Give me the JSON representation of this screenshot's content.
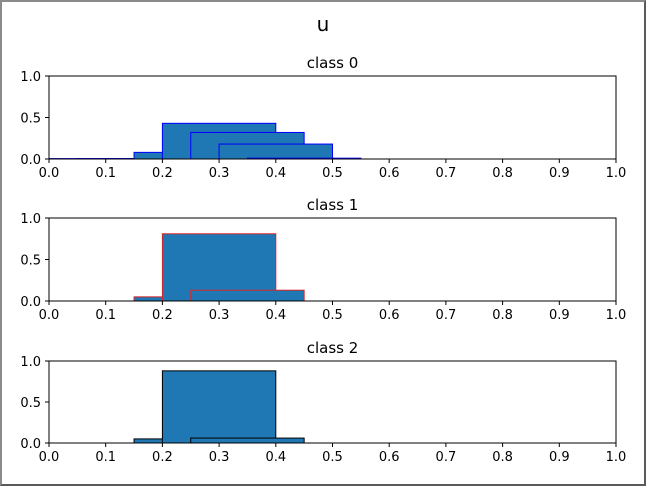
{
  "figure": {
    "title": "u"
  },
  "colors": {
    "fill": "#1f77b4"
  },
  "chart_data": [
    {
      "type": "histogram",
      "title": "class 0",
      "edge_color": "#0000ff",
      "xlim": [
        0.0,
        1.0
      ],
      "ylim": [
        0.0,
        1.0
      ],
      "xticks": [
        "0.0",
        "0.1",
        "0.2",
        "0.3",
        "0.4",
        "0.5",
        "0.6",
        "0.7",
        "0.8",
        "0.9",
        "1.0"
      ],
      "yticks": [
        "0.0",
        "0.5",
        "1.0"
      ],
      "bars": [
        {
          "x0": 0.0,
          "x1": 0.2,
          "height": 0.005
        },
        {
          "x0": 0.05,
          "x1": 0.25,
          "height": 0.005
        },
        {
          "x0": 0.1,
          "x1": 0.3,
          "height": 0.005
        },
        {
          "x0": 0.15,
          "x1": 0.35,
          "height": 0.08
        },
        {
          "x0": 0.2,
          "x1": 0.4,
          "height": 0.43
        },
        {
          "x0": 0.25,
          "x1": 0.45,
          "height": 0.32
        },
        {
          "x0": 0.3,
          "x1": 0.5,
          "height": 0.18
        },
        {
          "x0": 0.35,
          "x1": 0.55,
          "height": 0.01
        },
        {
          "x0": 0.4,
          "x1": 0.6,
          "height": 0.0
        },
        {
          "x0": 0.45,
          "x1": 0.65,
          "height": 0.0
        },
        {
          "x0": 0.5,
          "x1": 0.7,
          "height": 0.0
        },
        {
          "x0": 0.55,
          "x1": 0.75,
          "height": 0.0
        },
        {
          "x0": 0.6,
          "x1": 0.8,
          "height": 0.0
        },
        {
          "x0": 0.65,
          "x1": 0.85,
          "height": 0.0
        },
        {
          "x0": 0.7,
          "x1": 0.9,
          "height": 0.0
        },
        {
          "x0": 0.75,
          "x1": 0.95,
          "height": 0.0
        },
        {
          "x0": 0.8,
          "x1": 1.0,
          "height": 0.0
        }
      ]
    },
    {
      "type": "histogram",
      "title": "class 1",
      "edge_color": "#d62728",
      "xlim": [
        0.0,
        1.0
      ],
      "ylim": [
        0.0,
        1.0
      ],
      "xticks": [
        "0.0",
        "0.1",
        "0.2",
        "0.3",
        "0.4",
        "0.5",
        "0.6",
        "0.7",
        "0.8",
        "0.9",
        "1.0"
      ],
      "yticks": [
        "0.0",
        "0.5",
        "1.0"
      ],
      "bars": [
        {
          "x0": 0.0,
          "x1": 0.2,
          "height": 0.0
        },
        {
          "x0": 0.05,
          "x1": 0.25,
          "height": 0.0
        },
        {
          "x0": 0.1,
          "x1": 0.3,
          "height": 0.0
        },
        {
          "x0": 0.15,
          "x1": 0.35,
          "height": 0.05
        },
        {
          "x0": 0.2,
          "x1": 0.4,
          "height": 0.81
        },
        {
          "x0": 0.25,
          "x1": 0.45,
          "height": 0.13
        },
        {
          "x0": 0.3,
          "x1": 0.5,
          "height": 0.0
        },
        {
          "x0": 0.35,
          "x1": 0.55,
          "height": 0.0
        },
        {
          "x0": 0.4,
          "x1": 0.6,
          "height": 0.0
        },
        {
          "x0": 0.45,
          "x1": 0.65,
          "height": 0.0
        },
        {
          "x0": 0.5,
          "x1": 0.7,
          "height": 0.0
        },
        {
          "x0": 0.55,
          "x1": 0.75,
          "height": 0.0
        },
        {
          "x0": 0.6,
          "x1": 0.8,
          "height": 0.0
        },
        {
          "x0": 0.65,
          "x1": 0.85,
          "height": 0.0
        },
        {
          "x0": 0.7,
          "x1": 0.9,
          "height": 0.0
        },
        {
          "x0": 0.75,
          "x1": 0.95,
          "height": 0.0
        },
        {
          "x0": 0.8,
          "x1": 1.0,
          "height": 0.0
        }
      ]
    },
    {
      "type": "histogram",
      "title": "class 2",
      "edge_color": "#000000",
      "xlim": [
        0.0,
        1.0
      ],
      "ylim": [
        0.0,
        1.0
      ],
      "xticks": [
        "0.0",
        "0.1",
        "0.2",
        "0.3",
        "0.4",
        "0.5",
        "0.6",
        "0.7",
        "0.8",
        "0.9",
        "1.0"
      ],
      "yticks": [
        "0.0",
        "0.5",
        "1.0"
      ],
      "bars": [
        {
          "x0": 0.0,
          "x1": 0.2,
          "height": 0.0
        },
        {
          "x0": 0.05,
          "x1": 0.25,
          "height": 0.0
        },
        {
          "x0": 0.1,
          "x1": 0.3,
          "height": 0.0
        },
        {
          "x0": 0.15,
          "x1": 0.35,
          "height": 0.05
        },
        {
          "x0": 0.2,
          "x1": 0.4,
          "height": 0.88
        },
        {
          "x0": 0.25,
          "x1": 0.45,
          "height": 0.06
        },
        {
          "x0": 0.3,
          "x1": 0.5,
          "height": 0.0
        },
        {
          "x0": 0.35,
          "x1": 0.55,
          "height": 0.0
        },
        {
          "x0": 0.4,
          "x1": 0.6,
          "height": 0.0
        },
        {
          "x0": 0.45,
          "x1": 0.65,
          "height": 0.0
        },
        {
          "x0": 0.5,
          "x1": 0.7,
          "height": 0.0
        },
        {
          "x0": 0.55,
          "x1": 0.75,
          "height": 0.0
        },
        {
          "x0": 0.6,
          "x1": 0.8,
          "height": 0.0
        },
        {
          "x0": 0.65,
          "x1": 0.85,
          "height": 0.0
        },
        {
          "x0": 0.7,
          "x1": 0.9,
          "height": 0.0
        },
        {
          "x0": 0.75,
          "x1": 0.95,
          "height": 0.0
        },
        {
          "x0": 0.8,
          "x1": 1.0,
          "height": 0.0
        }
      ]
    }
  ]
}
